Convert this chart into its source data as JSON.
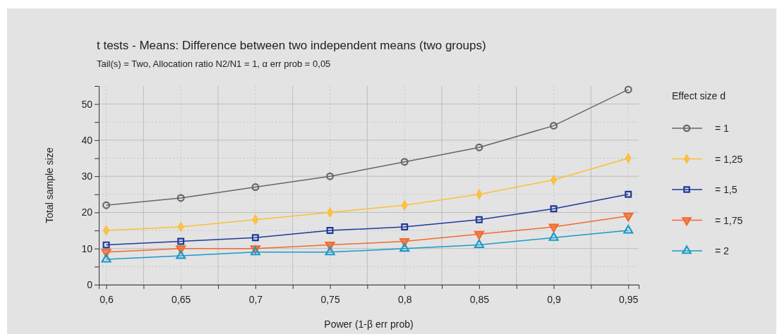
{
  "chart_data": {
    "type": "line",
    "title": "t tests - Means: Difference between two independent means (two groups)",
    "subtitle": "Tail(s) = Two, Allocation ratio N2/N1 = 1, α err prob = 0,05",
    "xlabel": "Power (1-β err prob)",
    "ylabel": "Total sample size",
    "legend_title": "Effect size d",
    "x": [
      0.6,
      0.65,
      0.7,
      0.75,
      0.8,
      0.85,
      0.9,
      0.95
    ],
    "series": [
      {
        "name": "= 1",
        "color": "#666666",
        "marker": "circle",
        "values": [
          22,
          24,
          27,
          30,
          34,
          38,
          44,
          54
        ]
      },
      {
        "name": "= 1,25",
        "color": "#fbbf3a",
        "marker": "diamond",
        "values": [
          15,
          16,
          18,
          20,
          22,
          25,
          29,
          35
        ]
      },
      {
        "name": "= 1,5",
        "color": "#1f3a9a",
        "marker": "square",
        "values": [
          11,
          12,
          13,
          15,
          16,
          18,
          21,
          25
        ]
      },
      {
        "name": "= 1,75",
        "color": "#f26a2e",
        "marker": "triangle-down",
        "values": [
          9,
          10,
          10,
          11,
          12,
          14,
          16,
          19
        ]
      },
      {
        "name": "= 2",
        "color": "#1a9ac9",
        "marker": "triangle",
        "values": [
          7,
          8,
          9,
          9,
          10,
          11,
          13,
          15
        ]
      }
    ],
    "xlim": [
      0.595,
      0.957
    ],
    "ylim": [
      0,
      55
    ],
    "xticks": [
      {
        "value": 0.6,
        "label": "0,6"
      },
      {
        "value": 0.625,
        "label": null
      },
      {
        "value": 0.65,
        "label": "0,65"
      },
      {
        "value": 0.675,
        "label": null
      },
      {
        "value": 0.7,
        "label": "0,7"
      },
      {
        "value": 0.725,
        "label": null
      },
      {
        "value": 0.75,
        "label": "0,75"
      },
      {
        "value": 0.775,
        "label": null
      },
      {
        "value": 0.8,
        "label": "0,8"
      },
      {
        "value": 0.825,
        "label": null
      },
      {
        "value": 0.85,
        "label": "0,85"
      },
      {
        "value": 0.875,
        "label": null
      },
      {
        "value": 0.9,
        "label": "0,9"
      },
      {
        "value": 0.925,
        "label": null
      },
      {
        "value": 0.95,
        "label": "0,95"
      }
    ],
    "yticks": [
      0,
      {
        "value": 5,
        "label": null
      },
      10,
      {
        "value": 15,
        "label": null
      },
      20,
      {
        "value": 25,
        "label": null
      },
      30,
      {
        "value": 35,
        "label": null
      },
      40,
      {
        "value": 45,
        "label": null
      },
      50
    ],
    "grid": true,
    "legend": "right",
    "line_style": "solid"
  }
}
